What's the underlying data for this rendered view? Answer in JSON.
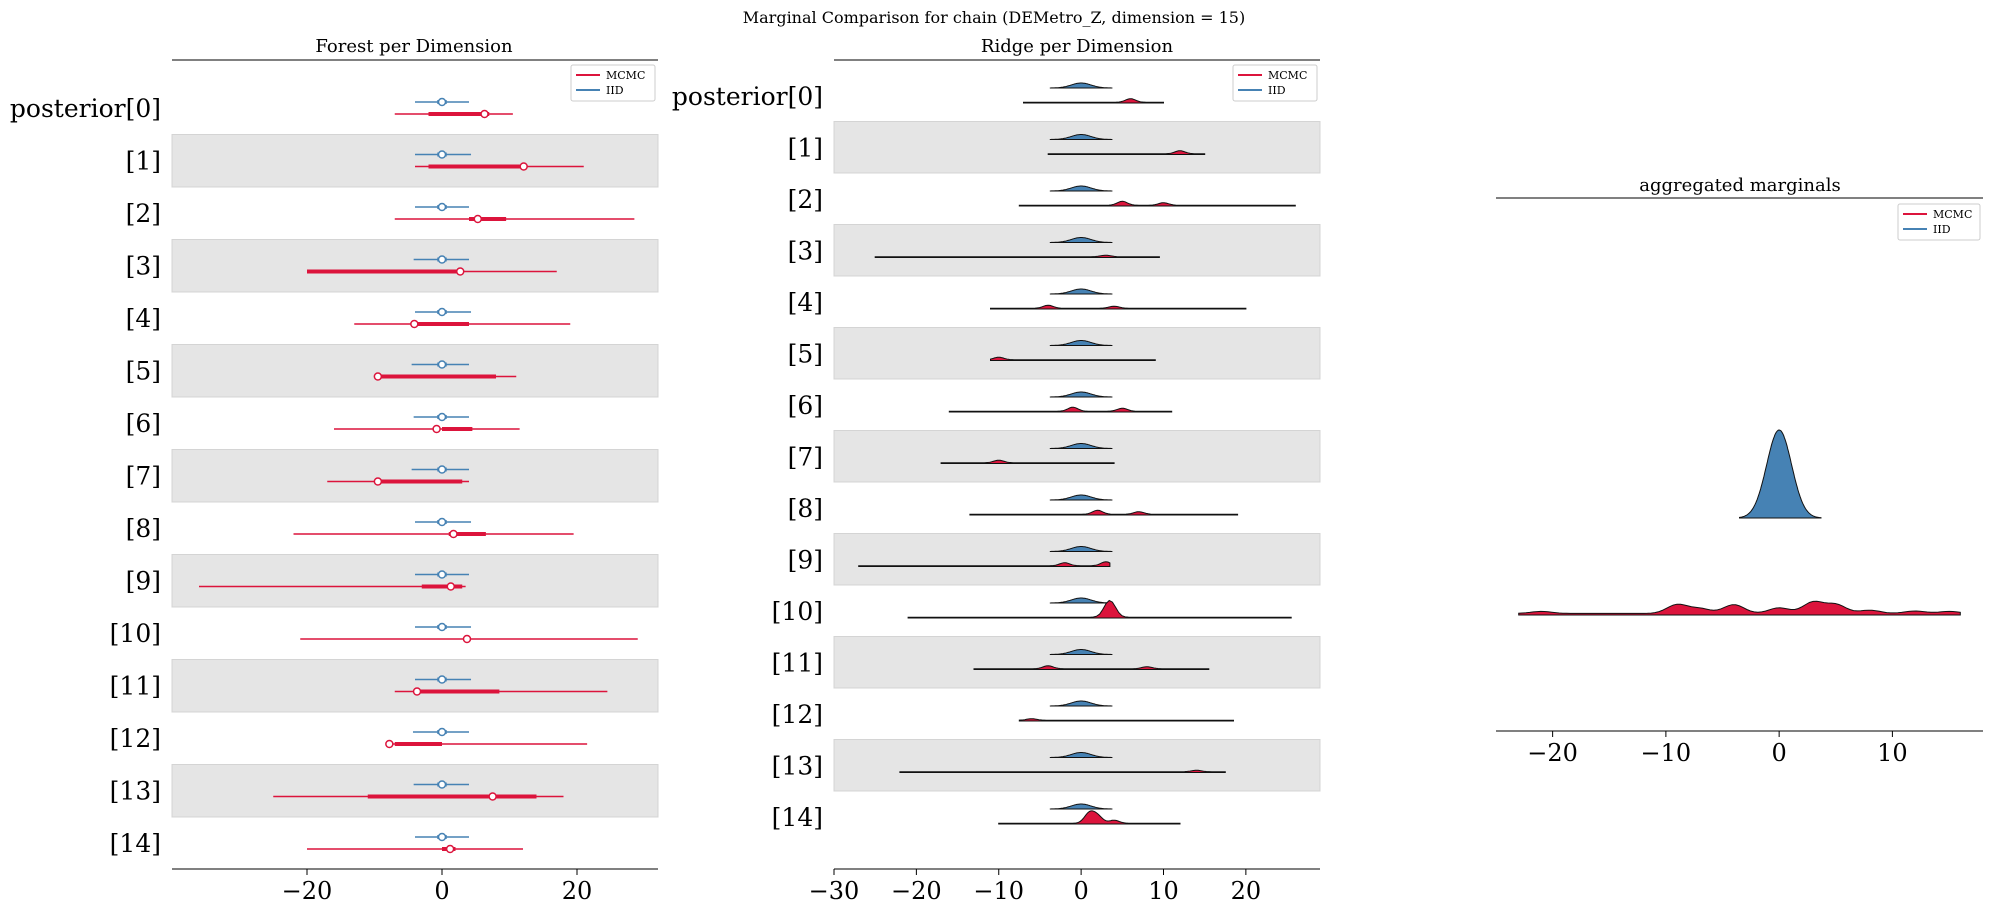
{
  "suptitle": "Marginal Comparison for chain (DEMetro_Z, dimension = 15)",
  "colors": {
    "mcmc": "#dc143c",
    "iid": "#4682b4",
    "band": "#e5e5e5",
    "outline": "#111111"
  },
  "legend_labels": [
    "MCMC",
    "IID"
  ],
  "chart_data": [
    {
      "type": "forest",
      "title": "Forest per Dimension",
      "row_labels": [
        "posterior[0]",
        "[1]",
        "[2]",
        "[3]",
        "[4]",
        "[5]",
        "[6]",
        "[7]",
        "[8]",
        "[9]",
        "[10]",
        "[11]",
        "[12]",
        "[13]",
        "[14]"
      ],
      "xlim": [
        -40,
        32
      ],
      "xticks": [
        -20,
        0,
        20
      ],
      "legend": "top-right",
      "series": [
        {
          "name": "MCMC",
          "mean": [
            6.3,
            12.1,
            5.3,
            2.7,
            -4.1,
            -9.5,
            -0.8,
            -9.5,
            1.7,
            1.3,
            3.7,
            -3.7,
            -7.8,
            7.5,
            1.2
          ],
          "hdi_94": [
            [
              -7,
              10.5
            ],
            [
              -4,
              21
            ],
            [
              -7,
              28.5
            ],
            [
              -20,
              17
            ],
            [
              -13,
              19
            ],
            [
              -10,
              11
            ],
            [
              -16,
              11.5
            ],
            [
              -17,
              4
            ],
            [
              -22,
              19.5
            ],
            [
              -36,
              3.5
            ],
            [
              -21,
              29
            ],
            [
              -7,
              24.5
            ],
            [
              -8,
              21.5
            ],
            [
              -25,
              18
            ],
            [
              -20,
              12
            ]
          ],
          "iqr": [
            [
              -2,
              7
            ],
            [
              -2,
              12
            ],
            [
              4,
              9.5
            ],
            [
              -20,
              2.7
            ],
            [
              -4,
              4
            ],
            [
              -9,
              8
            ],
            [
              0,
              4.5
            ],
            [
              -9,
              3
            ],
            [
              1,
              6.5
            ],
            [
              -3,
              3
            ],
            [
              0,
              0
            ],
            [
              -4,
              8.5
            ],
            [
              -7,
              0
            ],
            [
              -11,
              14
            ],
            [
              0,
              2
            ]
          ]
        },
        {
          "name": "IID",
          "mean": [
            0,
            0,
            0,
            0,
            0,
            0,
            0,
            0,
            0,
            0,
            0,
            0,
            0,
            0,
            0
          ],
          "hdi_94": [
            [
              -4,
              4
            ],
            [
              -4,
              4.3
            ],
            [
              -4,
              4
            ],
            [
              -4.2,
              4
            ],
            [
              -4,
              4.3
            ],
            [
              -4.5,
              4
            ],
            [
              -4.2,
              4
            ],
            [
              -4.5,
              4
            ],
            [
              -4,
              4.3
            ],
            [
              -4,
              4
            ],
            [
              -4,
              4.3
            ],
            [
              -4,
              4.3
            ],
            [
              -4.3,
              4
            ],
            [
              -4.2,
              4
            ],
            [
              -4,
              4
            ]
          ],
          "iqr": [
            [
              -0.7,
              0.7
            ],
            [
              -0.7,
              0.7
            ],
            [
              -0.7,
              0.7
            ],
            [
              -0.7,
              0.7
            ],
            [
              -0.7,
              0.7
            ],
            [
              -0.7,
              0.7
            ],
            [
              -0.7,
              0.7
            ],
            [
              -0.7,
              0.7
            ],
            [
              -0.7,
              0.7
            ],
            [
              -0.7,
              0.7
            ],
            [
              -0.7,
              0.7
            ],
            [
              -0.7,
              0.7
            ],
            [
              -0.7,
              0.7
            ],
            [
              -0.7,
              0.7
            ],
            [
              -0.7,
              0.7
            ]
          ]
        }
      ]
    },
    {
      "type": "ridge",
      "title": "Ridge per Dimension",
      "row_labels": [
        "posterior[0]",
        "[1]",
        "[2]",
        "[3]",
        "[4]",
        "[5]",
        "[6]",
        "[7]",
        "[8]",
        "[9]",
        "[10]",
        "[11]",
        "[12]",
        "[13]",
        "[14]"
      ],
      "xlim": [
        -30,
        29
      ],
      "xticks": [
        -30,
        -20,
        -10,
        0,
        10,
        20
      ],
      "legend": "top-right",
      "iid_range": [
        -3.8,
        3.8
      ],
      "mcmc_range": [
        [
          -7,
          10
        ],
        [
          -4,
          15
        ],
        [
          -7.5,
          26
        ],
        [
          -25,
          9.5
        ],
        [
          -11,
          20
        ],
        [
          -11,
          9
        ],
        [
          -16,
          11
        ],
        [
          -17,
          4
        ],
        [
          -13.5,
          19
        ],
        [
          -27,
          3.5
        ],
        [
          -21,
          25.5
        ],
        [
          -13,
          15.5
        ],
        [
          -7.5,
          18.5
        ],
        [
          -22,
          17.5
        ],
        [
          -10,
          12
        ]
      ],
      "mcmc_peaks": [
        [
          [
            6,
            0.35
          ]
        ],
        [
          [
            12,
            0.3
          ]
        ],
        [
          [
            5,
            0.4
          ],
          [
            10,
            0.25
          ]
        ],
        [
          [
            3,
            0.15
          ]
        ],
        [
          [
            -4,
            0.3
          ],
          [
            4,
            0.2
          ]
        ],
        [
          [
            -10,
            0.25
          ]
        ],
        [
          [
            -1,
            0.4
          ],
          [
            5,
            0.3
          ]
        ],
        [
          [
            -10,
            0.25
          ]
        ],
        [
          [
            2,
            0.4
          ],
          [
            7,
            0.25
          ]
        ],
        [
          [
            -2,
            0.3
          ],
          [
            3,
            0.4
          ]
        ],
        [
          [
            3.2,
            1.0
          ],
          [
            3.8,
            0.9
          ]
        ],
        [
          [
            -4,
            0.3
          ],
          [
            8,
            0.2
          ]
        ],
        [
          [
            -6,
            0.15
          ]
        ],
        [
          [
            14,
            0.15
          ]
        ],
        [
          [
            1,
            1.0
          ],
          [
            2,
            0.7
          ],
          [
            4,
            0.3
          ]
        ]
      ]
    },
    {
      "type": "ridge",
      "title": "aggregated marginals",
      "xlim": [
        -25,
        18
      ],
      "xticks": [
        -20,
        -10,
        0,
        10
      ],
      "legend": "top-right",
      "iid_range": [
        -3.5,
        3.7
      ],
      "mcmc_range": [
        -23,
        16
      ],
      "mcmc_peaks": [
        [
          -21,
          0.05
        ],
        [
          -9,
          0.22
        ],
        [
          -7,
          0.12
        ],
        [
          -4,
          0.22
        ],
        [
          0,
          0.14
        ],
        [
          3,
          0.28
        ],
        [
          5,
          0.22
        ],
        [
          8,
          0.08
        ],
        [
          12,
          0.06
        ],
        [
          15,
          0.05
        ]
      ]
    }
  ]
}
